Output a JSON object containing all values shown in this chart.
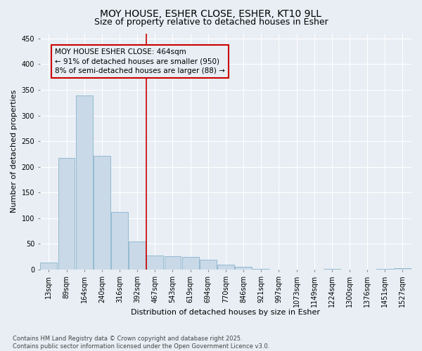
{
  "title_line1": "MOY HOUSE, ESHER CLOSE, ESHER, KT10 9LL",
  "title_line2": "Size of property relative to detached houses in Esher",
  "xlabel": "Distribution of detached houses by size in Esher",
  "ylabel": "Number of detached properties",
  "categories": [
    "13sqm",
    "89sqm",
    "164sqm",
    "240sqm",
    "316sqm",
    "392sqm",
    "467sqm",
    "543sqm",
    "619sqm",
    "694sqm",
    "770sqm",
    "846sqm",
    "921sqm",
    "997sqm",
    "1073sqm",
    "1149sqm",
    "1224sqm",
    "1300sqm",
    "1376sqm",
    "1451sqm",
    "1527sqm"
  ],
  "values": [
    14,
    217,
    339,
    222,
    112,
    54,
    27,
    26,
    25,
    19,
    10,
    6,
    1,
    0,
    0,
    0,
    1,
    0,
    0,
    1,
    2
  ],
  "bar_color": "#c9d9e8",
  "bar_edge_color": "#8ab4cc",
  "background_color": "#e8eef4",
  "grid_color": "#ffffff",
  "vline_x_idx": 6,
  "vline_color": "#cc0000",
  "annotation_line1": "MOY HOUSE ESHER CLOSE: 464sqm",
  "annotation_line2": "← 91% of detached houses are smaller (950)",
  "annotation_line3": "8% of semi-detached houses are larger (88) →",
  "annotation_box_edgecolor": "#cc0000",
  "ylim": [
    0,
    460
  ],
  "yticks": [
    0,
    50,
    100,
    150,
    200,
    250,
    300,
    350,
    400,
    450
  ],
  "footnote": "Contains HM Land Registry data © Crown copyright and database right 2025.\nContains public sector information licensed under the Open Government Licence v3.0.",
  "title_fontsize": 10,
  "subtitle_fontsize": 9,
  "axis_label_fontsize": 8,
  "tick_fontsize": 7,
  "annotation_fontsize": 7.5,
  "footnote_fontsize": 6
}
